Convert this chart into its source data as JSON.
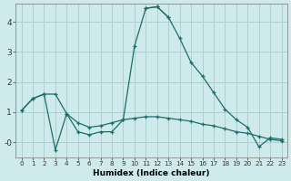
{
  "xlabel": "Humidex (Indice chaleur)",
  "background_color": "#ceeaea",
  "grid_color": "#aed0d0",
  "line_color": "#1a6e6a",
  "ylim": [
    -0.5,
    4.6
  ],
  "xlim": [
    -0.5,
    23.5
  ],
  "yticks": [
    0,
    1,
    2,
    3,
    4
  ],
  "ytick_labels": [
    "-0",
    "1",
    "2",
    "3",
    "4"
  ],
  "curve_spike": {
    "x": [
      0,
      1,
      2,
      3,
      4,
      5,
      6,
      7,
      8,
      9,
      10,
      11,
      12,
      13
    ],
    "y": [
      1.05,
      1.45,
      1.6,
      -0.25,
      0.95,
      0.35,
      0.25,
      0.35,
      0.35,
      0.75,
      3.2,
      4.45,
      4.5,
      4.15
    ]
  },
  "curve_descend": {
    "x": [
      11,
      12,
      13,
      14,
      15,
      16,
      17,
      18,
      19,
      20,
      21,
      22,
      23
    ],
    "y": [
      4.45,
      4.5,
      4.15,
      3.45,
      2.65,
      2.2,
      1.65,
      1.1,
      0.75,
      0.5,
      -0.15,
      0.15,
      0.1
    ]
  },
  "curve_flat": {
    "x": [
      0,
      1,
      2,
      3,
      4,
      5,
      6,
      7,
      8,
      9,
      10,
      11,
      12,
      13,
      14,
      15,
      16,
      17,
      18,
      19,
      20,
      21,
      22,
      23
    ],
    "y": [
      1.05,
      1.45,
      1.6,
      1.6,
      0.95,
      0.65,
      0.5,
      0.55,
      0.65,
      0.75,
      0.8,
      0.85,
      0.85,
      0.8,
      0.75,
      0.7,
      0.6,
      0.55,
      0.45,
      0.35,
      0.3,
      0.2,
      0.1,
      0.05
    ]
  }
}
